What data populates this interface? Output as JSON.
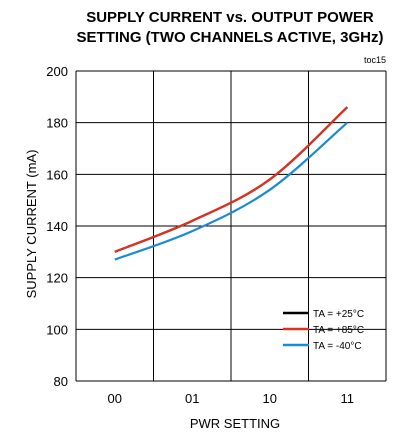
{
  "chart_data": {
    "type": "line",
    "title_lines": [
      "SUPPLY CURRENT vs. OUTPUT POWER",
      "SETTING (TWO CHANNELS ACTIVE, 3GHz)"
    ],
    "tag": "toc15",
    "xlabel": "PWR SETTING",
    "ylabel": "SUPPLY CURRENT (mA)",
    "categories": [
      "00",
      "01",
      "10",
      "11"
    ],
    "ylim": [
      80,
      200
    ],
    "yticks": [
      "80",
      "100",
      "120",
      "140",
      "160",
      "180",
      "200"
    ],
    "grid": true,
    "legend_position": "bottom-right",
    "series": [
      {
        "name": "TA = +25°C",
        "color": "#000000",
        "values": [
          130,
          142,
          158,
          186
        ]
      },
      {
        "name": "TA = +85°C",
        "color": "#e0301e",
        "values": [
          130,
          142,
          158,
          186
        ]
      },
      {
        "name": "TA = -40°C",
        "color": "#1a8ad4",
        "values": [
          127,
          138,
          154,
          180
        ]
      }
    ]
  }
}
